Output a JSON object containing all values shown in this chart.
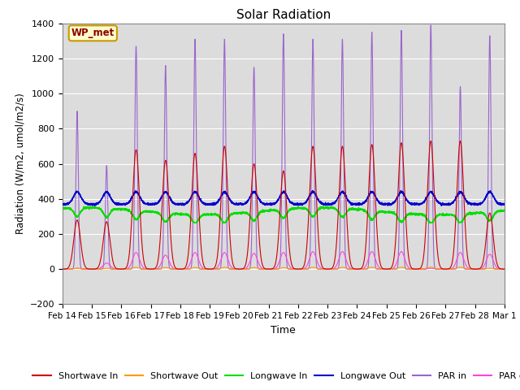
{
  "title": "Solar Radiation",
  "ylabel": "Radiation (W/m2, umol/m2/s)",
  "xlabel": "Time",
  "ylim": [
    -200,
    1400
  ],
  "yticks": [
    -200,
    0,
    200,
    400,
    600,
    800,
    1000,
    1200,
    1400
  ],
  "bg_color": "#dcdcdc",
  "station_label": "WP_met",
  "x_tick_labels": [
    "Feb 14",
    "Feb 15",
    "Feb 16",
    "Feb 17",
    "Feb 18",
    "Feb 19",
    "Feb 20",
    "Feb 21",
    "Feb 22",
    "Feb 23",
    "Feb 24",
    "Feb 25",
    "Feb 26",
    "Feb 27",
    "Feb 28",
    "Mar 1"
  ],
  "colors": {
    "sw_in": "#cc0000",
    "sw_out": "#ff9900",
    "lw_in": "#00dd00",
    "lw_out": "#0000cc",
    "par_in": "#9966cc",
    "par_out": "#ff44dd"
  },
  "sw_peaks": [
    280,
    270,
    680,
    620,
    660,
    700,
    600,
    560,
    700,
    700,
    710,
    720,
    730,
    730,
    320
  ],
  "par_peaks": [
    900,
    590,
    1270,
    1160,
    1310,
    1310,
    1150,
    1340,
    1310,
    1310,
    1350,
    1360,
    1390,
    1040,
    1330
  ],
  "par_out_peaks": [
    5,
    35,
    95,
    80,
    95,
    95,
    90,
    95,
    100,
    100,
    100,
    100,
    5,
    95,
    85
  ],
  "lw_in_base": 330,
  "lw_out_base": 370
}
